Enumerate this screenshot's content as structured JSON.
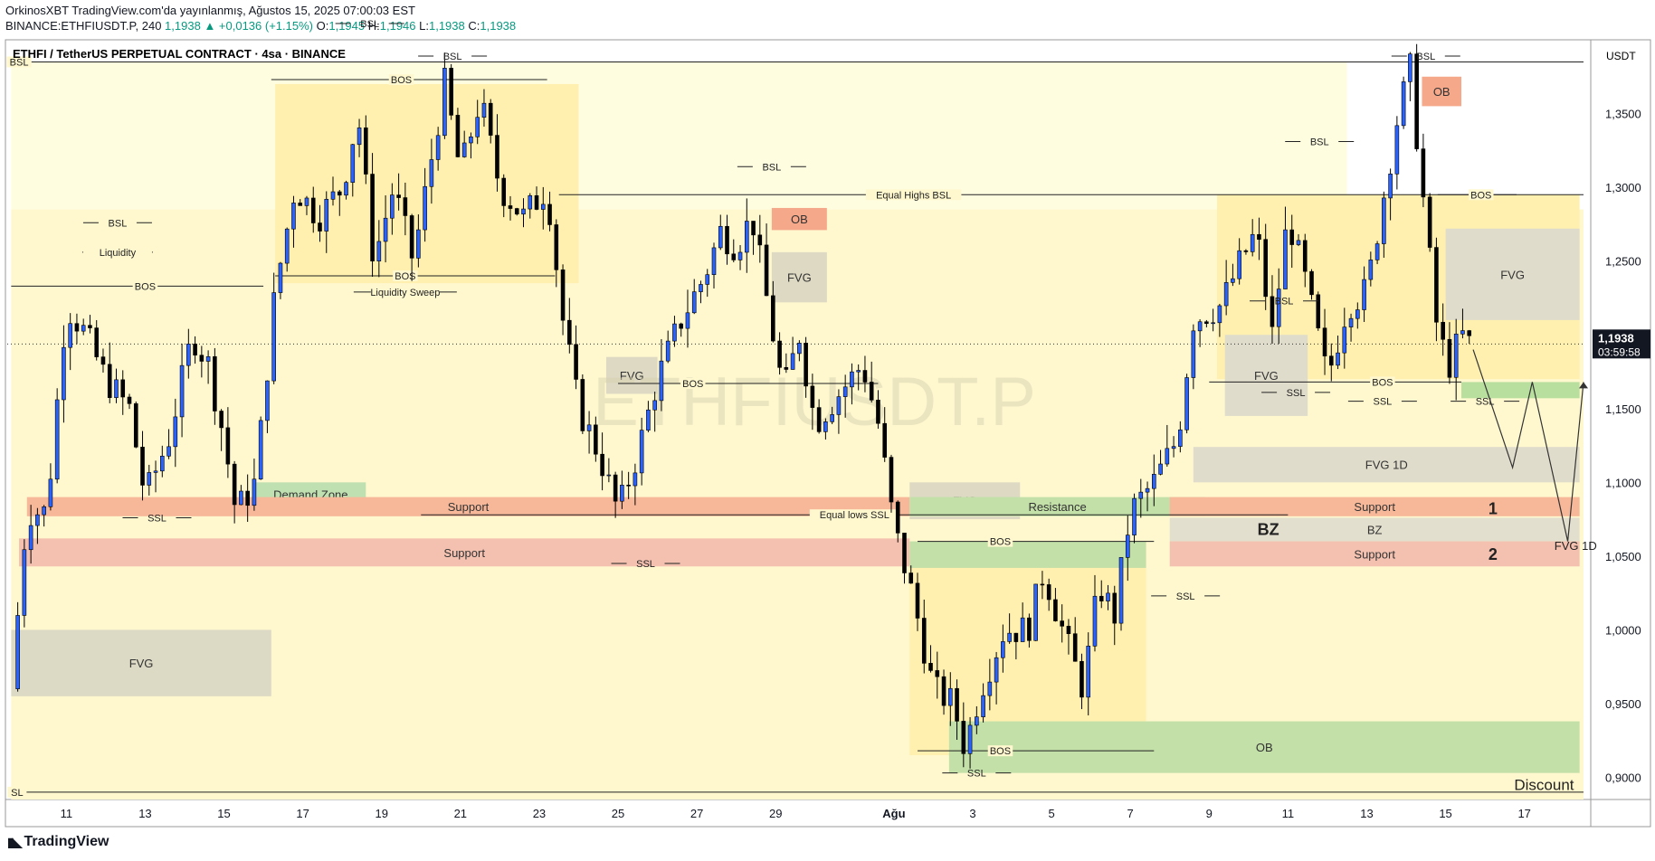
{
  "header": {
    "line1": "OrkinosXBT TradingView.com'da yayınlanmış, Ağustos 15, 2025 07:00:03 EST",
    "symbol_line": "BINANCE:ETHFIUSDT.P, 240",
    "last": "1,1938",
    "change": "▲ +0,0136 (+1.15%)",
    "ohlc": {
      "O": "1,1945",
      "H": "1,1946",
      "L": "1,1938",
      "C": "1,1938"
    }
  },
  "chart_title": "ETHFI / TetherUS PERPETUAL CONTRACT · 4sa · BINANCE",
  "watermark": "ETHFIUSDT.P",
  "axis_currency": "USDT",
  "footer_brand": "TradingView",
  "chart_data": {
    "type": "candlestick",
    "ylim": [
      0.885,
      1.4
    ],
    "y_ticks": [
      {
        "v": 1.35,
        "label": "1,3500"
      },
      {
        "v": 1.3,
        "label": "1,3000"
      },
      {
        "v": 1.25,
        "label": "1,2500"
      },
      {
        "v": 1.2,
        "label": "1,2000"
      },
      {
        "v": 1.15,
        "label": "1,1500"
      },
      {
        "v": 1.1,
        "label": "1,1000"
      },
      {
        "v": 1.05,
        "label": "1,0500"
      },
      {
        "v": 1.0,
        "label": "1,0000"
      },
      {
        "v": 0.95,
        "label": "0,9500"
      },
      {
        "v": 0.9,
        "label": "0,9000"
      }
    ],
    "x_ticks": [
      "11",
      "13",
      "15",
      "17",
      "19",
      "21",
      "23",
      "25",
      "27",
      "29",
      "Ağu",
      "3",
      "5",
      "7",
      "9",
      "11",
      "13",
      "15",
      "17"
    ],
    "x_tick_days": [
      11,
      13,
      15,
      17,
      19,
      21,
      23,
      25,
      27,
      29,
      32,
      34,
      36,
      38,
      40,
      42,
      44,
      46,
      48
    ],
    "x_range_days": [
      9.5,
      49.5
    ],
    "last_price": {
      "v": 1.1938,
      "label": "1,1938",
      "countdown": "03:59:58"
    },
    "price_path": [
      [
        9.6,
        0.96
      ],
      [
        10.0,
        1.08
      ],
      [
        10.5,
        1.08
      ],
      [
        11.0,
        1.22
      ],
      [
        11.5,
        1.2
      ],
      [
        12.0,
        1.17
      ],
      [
        12.6,
        1.15
      ],
      [
        13.0,
        1.09
      ],
      [
        13.6,
        1.13
      ],
      [
        14.2,
        1.2
      ],
      [
        14.6,
        1.18
      ],
      [
        15.0,
        1.13
      ],
      [
        15.3,
        1.08
      ],
      [
        15.8,
        1.1
      ],
      [
        16.3,
        1.23
      ],
      [
        16.8,
        1.3
      ],
      [
        17.4,
        1.28
      ],
      [
        18.0,
        1.3
      ],
      [
        18.4,
        1.35
      ],
      [
        18.8,
        1.25
      ],
      [
        19.3,
        1.3
      ],
      [
        19.8,
        1.25
      ],
      [
        20.2,
        1.31
      ],
      [
        20.6,
        1.37
      ],
      [
        21.0,
        1.31
      ],
      [
        21.5,
        1.36
      ],
      [
        22.0,
        1.3
      ],
      [
        22.6,
        1.28
      ],
      [
        23.2,
        1.3
      ],
      [
        23.6,
        1.21
      ],
      [
        24.0,
        1.15
      ],
      [
        24.5,
        1.12
      ],
      [
        25.0,
        1.08
      ],
      [
        25.5,
        1.12
      ],
      [
        26.0,
        1.17
      ],
      [
        26.6,
        1.21
      ],
      [
        27.2,
        1.24
      ],
      [
        27.6,
        1.27
      ],
      [
        28.0,
        1.26
      ],
      [
        28.4,
        1.28
      ],
      [
        28.8,
        1.22
      ],
      [
        29.2,
        1.16
      ],
      [
        29.6,
        1.2
      ],
      [
        30.0,
        1.14
      ],
      [
        30.6,
        1.16
      ],
      [
        31.2,
        1.18
      ],
      [
        31.6,
        1.14
      ],
      [
        32.0,
        1.07
      ],
      [
        32.5,
        1.02
      ],
      [
        33.0,
        0.96
      ],
      [
        33.5,
        0.95
      ],
      [
        33.8,
        0.92
      ],
      [
        34.2,
        0.96
      ],
      [
        34.8,
        1.0
      ],
      [
        35.4,
        1.0
      ],
      [
        35.8,
        1.04
      ],
      [
        36.4,
        0.99
      ],
      [
        36.8,
        0.96
      ],
      [
        37.2,
        1.03
      ],
      [
        37.6,
        1.01
      ],
      [
        38.0,
        1.08
      ],
      [
        38.6,
        1.1
      ],
      [
        39.2,
        1.13
      ],
      [
        39.6,
        1.21
      ],
      [
        40.3,
        1.22
      ],
      [
        40.8,
        1.25
      ],
      [
        41.2,
        1.27
      ],
      [
        41.6,
        1.2
      ],
      [
        42.0,
        1.28
      ],
      [
        42.5,
        1.23
      ],
      [
        43.0,
        1.17
      ],
      [
        43.5,
        1.22
      ],
      [
        44.0,
        1.23
      ],
      [
        44.4,
        1.29
      ],
      [
        44.8,
        1.35
      ],
      [
        45.1,
        1.38
      ],
      [
        45.4,
        1.3
      ],
      [
        45.8,
        1.2
      ],
      [
        46.1,
        1.18
      ],
      [
        46.4,
        1.2
      ],
      [
        46.6,
        1.1938
      ]
    ],
    "zones": [
      {
        "x": [
          9.6,
          43.5
        ],
        "y": [
          1.285,
          1.385
        ],
        "color": "#fffde0",
        "label": ""
      },
      {
        "x": [
          9.6,
          49.5
        ],
        "y": [
          0.885,
          1.285
        ],
        "color": "#fff8cf",
        "label": ""
      },
      {
        "x": [
          16.3,
          24.0
        ],
        "y": [
          1.235,
          1.37
        ],
        "color": "#fff0b0",
        "label": ""
      },
      {
        "x": [
          32.4,
          38.4
        ],
        "y": [
          0.915,
          1.06
        ],
        "color": "#fff0b0",
        "label": ""
      },
      {
        "x": [
          40.2,
          49.4
        ],
        "y": [
          1.17,
          1.295
        ],
        "color": "#fff0b0",
        "label": ""
      },
      {
        "x": [
          9.6,
          16.2
        ],
        "y": [
          0.955,
          1.0
        ],
        "color": "#dcd9c4",
        "label": "FVG"
      },
      {
        "x": [
          15.8,
          18.6
        ],
        "y": [
          1.084,
          1.1
        ],
        "color": "#bfe0b0",
        "label": "Demand Zone"
      },
      {
        "x": [
          10.0,
          32.4
        ],
        "y": [
          1.077,
          1.09
        ],
        "color": "#f7b89a",
        "label": "Support"
      },
      {
        "x": [
          9.8,
          32.4
        ],
        "y": [
          1.043,
          1.062
        ],
        "color": "#f4c1b0",
        "label": "Support"
      },
      {
        "x": [
          24.7,
          26.0
        ],
        "y": [
          1.16,
          1.185
        ],
        "color": "#ddd9c3",
        "label": "FVG"
      },
      {
        "x": [
          28.9,
          30.3
        ],
        "y": [
          1.222,
          1.256
        ],
        "color": "#ddd9c3",
        "label": "FVG"
      },
      {
        "x": [
          28.9,
          30.3
        ],
        "y": [
          1.271,
          1.286
        ],
        "color": "#f6a88a",
        "label": "OB"
      },
      {
        "x": [
          32.4,
          35.2
        ],
        "y": [
          1.075,
          1.1
        ],
        "color": "#ddd9c3",
        "label": "FVG"
      },
      {
        "x": [
          32.4,
          39.9
        ],
        "y": [
          1.077,
          1.09
        ],
        "color": "#c3e0a8",
        "label": "Resistance"
      },
      {
        "x": [
          32.4,
          38.4
        ],
        "y": [
          1.042,
          1.06
        ],
        "color": "#c3e0a8",
        "label": ""
      },
      {
        "x": [
          33.4,
          49.4
        ],
        "y": [
          0.903,
          0.938
        ],
        "color": "#c3e0a8",
        "label": "OB"
      },
      {
        "x": [
          39.6,
          49.4
        ],
        "y": [
          1.1,
          1.124
        ],
        "color": "#e0dccb",
        "label": "FVG 1D"
      },
      {
        "x": [
          39.0,
          49.4
        ],
        "y": [
          1.077,
          1.09
        ],
        "color": "#f7b89a",
        "label": "Support"
      },
      {
        "x": [
          39.0,
          49.4
        ],
        "y": [
          1.06,
          1.076
        ],
        "color": "#e3dfce",
        "label": "BZ"
      },
      {
        "x": [
          39.0,
          49.4
        ],
        "y": [
          1.043,
          1.06
        ],
        "color": "#f4c1b0",
        "label": "Support"
      },
      {
        "x": [
          40.4,
          42.5
        ],
        "y": [
          1.145,
          1.2
        ],
        "color": "#e0dccb",
        "label": "FVG"
      },
      {
        "x": [
          46.0,
          49.4
        ],
        "y": [
          1.21,
          1.272
        ],
        "color": "#e0dccb",
        "label": "FVG"
      },
      {
        "x": [
          46.4,
          49.4
        ],
        "y": [
          1.157,
          1.168
        ],
        "color": "#b9df9f",
        "label": ""
      },
      {
        "x": [
          45.4,
          46.4
        ],
        "y": [
          1.355,
          1.375
        ],
        "color": "#f6a88a",
        "label": "OB"
      }
    ],
    "levels": [
      {
        "x": [
          9.6,
          49.5
        ],
        "y": 1.385,
        "label": "BSL",
        "lx": 9.8
      },
      {
        "x": [
          9.6,
          49.5
        ],
        "y": 0.89,
        "label": "SL",
        "lx": 9.75
      },
      {
        "x": [
          23.5,
          49.5
        ],
        "y": 1.295,
        "label": "Equal Highs BSL",
        "lx": 32.5
      },
      {
        "x": [
          9.6,
          16.0
        ],
        "y": 1.233,
        "label": "BOS",
        "lx": 13.0
      },
      {
        "x": [
          16.2,
          23.2
        ],
        "y": 1.373,
        "label": "BOS",
        "lx": 19.5
      },
      {
        "x": [
          16.3,
          23.4
        ],
        "y": 1.24,
        "label": "BOS",
        "lx": 19.6
      },
      {
        "x": [
          25.0,
          31.6
        ],
        "y": 1.167,
        "label": "BOS",
        "lx": 26.9
      },
      {
        "x": [
          20.0,
          42.0
        ],
        "y": 1.078,
        "label": "Equal lows SSL",
        "lx": 31.0
      },
      {
        "x": [
          32.6,
          38.6
        ],
        "y": 1.06,
        "label": "BOS",
        "lx": 34.7
      },
      {
        "x": [
          32.6,
          38.6
        ],
        "y": 0.918,
        "label": "BOS",
        "lx": 34.7
      },
      {
        "x": [
          40.0,
          46.4
        ],
        "y": 1.168,
        "label": "BOS",
        "lx": 44.4
      },
      {
        "x": [
          45.8,
          47.8
        ],
        "y": 1.295,
        "label": "BOS",
        "lx": 46.9
      }
    ],
    "tags": [
      {
        "x": 18.7,
        "y": 1.411,
        "label": "BSL"
      },
      {
        "x": 20.8,
        "y": 1.389,
        "label": "BSL"
      },
      {
        "x": 12.3,
        "y": 1.276,
        "label": "BSL"
      },
      {
        "x": 12.3,
        "y": 1.256,
        "label": "Liquidity"
      },
      {
        "x": 19.6,
        "y": 1.229,
        "label": "Liquidity Sweep"
      },
      {
        "x": 28.9,
        "y": 1.314,
        "label": "BSL"
      },
      {
        "x": 13.3,
        "y": 1.076,
        "label": "SSL"
      },
      {
        "x": 25.7,
        "y": 1.045,
        "label": "SSL"
      },
      {
        "x": 34.1,
        "y": 0.903,
        "label": "SSL"
      },
      {
        "x": 39.4,
        "y": 1.023,
        "label": "SSL"
      },
      {
        "x": 42.2,
        "y": 1.161,
        "label": "SSL"
      },
      {
        "x": 44.4,
        "y": 1.155,
        "label": "SSL"
      },
      {
        "x": 42.8,
        "y": 1.331,
        "label": "BSL"
      },
      {
        "x": 45.5,
        "y": 1.389,
        "label": "BSL"
      },
      {
        "x": 47.0,
        "y": 1.155,
        "label": "SSL"
      },
      {
        "x": 41.9,
        "y": 1.223,
        "label": "BSL"
      }
    ],
    "big_labels": [
      {
        "x": 47.2,
        "y": 1.082,
        "label": "1"
      },
      {
        "x": 47.2,
        "y": 1.051,
        "label": "2"
      },
      {
        "x": 41.5,
        "y": 1.068,
        "label": "BZ"
      },
      {
        "x": 48.5,
        "y": 0.895,
        "label": "Discount"
      },
      {
        "x": 49.3,
        "y": 1.058,
        "label": "FVG 1D"
      }
    ],
    "projection": [
      [
        46.7,
        1.19
      ],
      [
        47.7,
        1.11
      ],
      [
        48.2,
        1.168
      ],
      [
        49.1,
        1.06
      ],
      [
        49.5,
        1.168
      ]
    ]
  }
}
